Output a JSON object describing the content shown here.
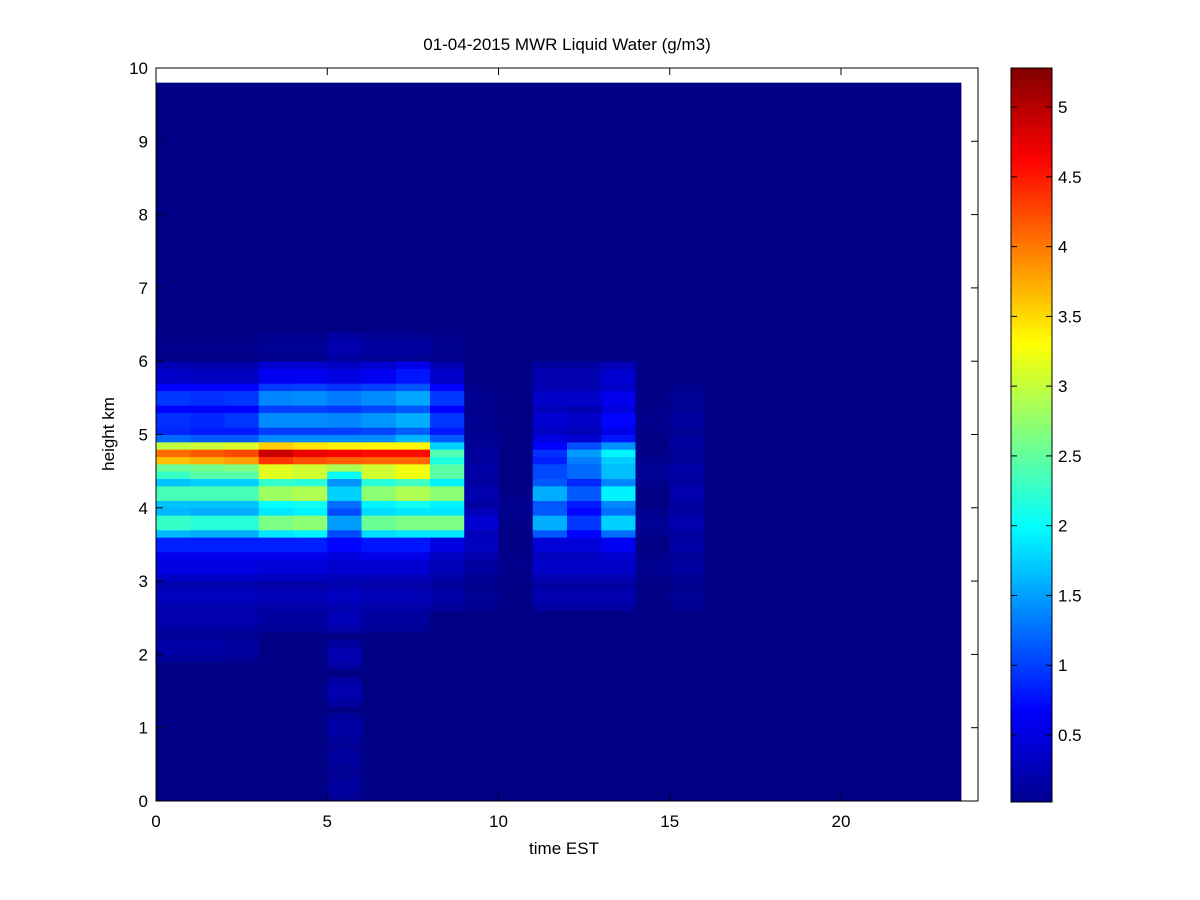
{
  "chart_data": {
    "type": "heatmap",
    "title": "01-04-2015 MWR Liquid Water (g/m3)",
    "xlabel": "time EST",
    "ylabel": "height km",
    "xlim": [
      0,
      24
    ],
    "ylim": [
      0,
      10
    ],
    "x_ticks": [
      0,
      5,
      10,
      15,
      20
    ],
    "y_ticks": [
      0,
      1,
      2,
      3,
      4,
      5,
      6,
      7,
      8,
      9,
      10
    ],
    "x_tick_labels": [
      "0",
      "5",
      "10",
      "15",
      "20"
    ],
    "y_tick_labels": [
      "0",
      "1",
      "2",
      "3",
      "4",
      "5",
      "6",
      "7",
      "8",
      "9",
      "10"
    ],
    "colorbar": {
      "colormap": "jet",
      "range": [
        0.02,
        5.28
      ],
      "ticks": [
        0.5,
        1,
        1.5,
        2,
        2.5,
        3,
        3.5,
        4,
        4.5,
        5
      ],
      "tick_labels": [
        "0.5",
        "1",
        "1.5",
        "2",
        "2.5",
        "3",
        "3.5",
        "4",
        "4.5",
        "5"
      ]
    },
    "time_bin_width": 1,
    "height_top": 9.75,
    "background_value": 0.05,
    "columns": [
      {
        "time": 0.5,
        "profile": [
          [
            2.1,
            0.25
          ],
          [
            2.5,
            0.3
          ],
          [
            2.8,
            0.4
          ],
          [
            3.2,
            0.6
          ],
          [
            3.5,
            0.95
          ],
          [
            3.8,
            2.6
          ],
          [
            4.2,
            2.7
          ],
          [
            4.5,
            2.6
          ],
          [
            4.72,
            4.4
          ],
          [
            4.9,
            1.4
          ],
          [
            5.2,
            1.05
          ],
          [
            5.5,
            1.1
          ],
          [
            5.8,
            0.45
          ],
          [
            6.2,
            0.1
          ]
        ]
      },
      {
        "time": 1.5,
        "profile": [
          [
            2.1,
            0.25
          ],
          [
            2.5,
            0.3
          ],
          [
            2.8,
            0.4
          ],
          [
            3.2,
            0.6
          ],
          [
            3.5,
            0.95
          ],
          [
            3.8,
            2.5
          ],
          [
            4.2,
            2.7
          ],
          [
            4.5,
            2.8
          ],
          [
            4.72,
            4.5
          ],
          [
            4.9,
            1.3
          ],
          [
            5.2,
            1.0
          ],
          [
            5.5,
            1.05
          ],
          [
            5.8,
            0.4
          ],
          [
            6.2,
            0.1
          ]
        ]
      },
      {
        "time": 2.5,
        "profile": [
          [
            2.1,
            0.2
          ],
          [
            2.5,
            0.3
          ],
          [
            2.8,
            0.4
          ],
          [
            3.2,
            0.6
          ],
          [
            3.5,
            0.95
          ],
          [
            3.8,
            2.5
          ],
          [
            4.2,
            2.7
          ],
          [
            4.5,
            2.8
          ],
          [
            4.72,
            4.6
          ],
          [
            4.9,
            1.3
          ],
          [
            5.2,
            1.1
          ],
          [
            5.5,
            1.1
          ],
          [
            5.8,
            0.4
          ],
          [
            6.2,
            0.1
          ]
        ]
      },
      {
        "time": 3.0,
        "profile": [
          [
            2.5,
            0.2
          ],
          [
            2.8,
            0.35
          ],
          [
            3.2,
            0.55
          ],
          [
            3.5,
            0.95
          ],
          [
            3.8,
            3.0
          ],
          [
            4.2,
            3.2
          ],
          [
            4.5,
            3.6
          ],
          [
            4.72,
            5.28
          ],
          [
            4.9,
            1.6
          ],
          [
            5.2,
            1.6
          ],
          [
            5.5,
            1.55
          ],
          [
            5.8,
            0.7
          ],
          [
            6.2,
            0.15
          ]
        ]
      },
      {
        "time": 4.0,
        "profile": [
          [
            2.5,
            0.2
          ],
          [
            2.8,
            0.35
          ],
          [
            3.2,
            0.55
          ],
          [
            3.5,
            0.95
          ],
          [
            3.8,
            3.1
          ],
          [
            4.2,
            3.3
          ],
          [
            4.5,
            3.5
          ],
          [
            4.72,
            5.1
          ],
          [
            4.9,
            1.6
          ],
          [
            5.2,
            1.6
          ],
          [
            5.5,
            1.6
          ],
          [
            5.8,
            0.7
          ],
          [
            6.2,
            0.15
          ]
        ]
      },
      {
        "time": 5.0,
        "profile": [
          [
            0.2,
            0.2
          ],
          [
            0.6,
            0.2
          ],
          [
            1.0,
            0.25
          ],
          [
            1.5,
            0.3
          ],
          [
            2.0,
            0.3
          ],
          [
            2.5,
            0.35
          ],
          [
            2.8,
            0.4
          ],
          [
            3.2,
            0.5
          ],
          [
            3.5,
            0.8
          ],
          [
            3.8,
            1.7
          ],
          [
            4.2,
            2.0
          ],
          [
            4.5,
            2.3
          ],
          [
            4.72,
            5.0
          ],
          [
            4.9,
            1.6
          ],
          [
            5.2,
            1.55
          ],
          [
            5.5,
            1.5
          ],
          [
            5.8,
            0.6
          ],
          [
            6.2,
            0.3
          ]
        ]
      },
      {
        "time": 6.0,
        "profile": [
          [
            2.5,
            0.2
          ],
          [
            2.8,
            0.35
          ],
          [
            3.2,
            0.5
          ],
          [
            3.5,
            0.9
          ],
          [
            3.8,
            2.9
          ],
          [
            4.2,
            3.1
          ],
          [
            4.5,
            3.5
          ],
          [
            4.72,
            4.95
          ],
          [
            4.9,
            1.6
          ],
          [
            5.2,
            1.65
          ],
          [
            5.5,
            1.6
          ],
          [
            5.8,
            0.7
          ],
          [
            6.2,
            0.2
          ]
        ]
      },
      {
        "time": 7.0,
        "profile": [
          [
            2.5,
            0.2
          ],
          [
            2.8,
            0.35
          ],
          [
            3.2,
            0.5
          ],
          [
            3.5,
            0.9
          ],
          [
            3.8,
            3.0
          ],
          [
            4.2,
            3.3
          ],
          [
            4.5,
            3.7
          ],
          [
            4.72,
            4.95
          ],
          [
            4.9,
            1.85
          ],
          [
            5.2,
            1.8
          ],
          [
            5.5,
            1.75
          ],
          [
            5.8,
            0.9
          ],
          [
            6.2,
            0.2
          ]
        ]
      },
      {
        "time": 8.0,
        "profile": [
          [
            2.8,
            0.25
          ],
          [
            3.2,
            0.35
          ],
          [
            3.5,
            0.6
          ],
          [
            3.8,
            3.0
          ],
          [
            4.2,
            3.1
          ],
          [
            4.5,
            2.8
          ],
          [
            4.72,
            2.6
          ],
          [
            4.9,
            1.3
          ],
          [
            5.2,
            1.1
          ],
          [
            5.5,
            1.1
          ],
          [
            5.8,
            0.45
          ],
          [
            6.2,
            0.12
          ]
        ]
      },
      {
        "time": 9.0,
        "profile": [
          [
            2.8,
            0.15
          ],
          [
            3.2,
            0.2
          ],
          [
            3.5,
            0.4
          ],
          [
            3.8,
            0.5
          ],
          [
            4.2,
            0.3
          ],
          [
            4.5,
            0.25
          ],
          [
            4.72,
            0.2
          ],
          [
            4.9,
            0.15
          ],
          [
            5.2,
            0.12
          ],
          [
            5.5,
            0.12
          ]
        ]
      },
      {
        "time": 10.0,
        "profile": [
          [
            3.2,
            0.1
          ],
          [
            4.0,
            0.12
          ]
        ]
      },
      {
        "time": 11.0,
        "profile": [
          [
            2.8,
            0.3
          ],
          [
            3.2,
            0.45
          ],
          [
            3.5,
            0.55
          ],
          [
            3.8,
            1.8
          ],
          [
            4.2,
            1.8
          ],
          [
            4.5,
            1.2
          ],
          [
            4.72,
            1.0
          ],
          [
            4.9,
            0.6
          ],
          [
            5.2,
            0.5
          ],
          [
            5.5,
            0.45
          ],
          [
            5.8,
            0.3
          ]
        ]
      },
      {
        "time": 12.0,
        "profile": [
          [
            2.8,
            0.3
          ],
          [
            3.2,
            0.45
          ],
          [
            3.5,
            0.55
          ],
          [
            3.8,
            1.1
          ],
          [
            4.2,
            1.3
          ],
          [
            4.5,
            1.4
          ],
          [
            4.72,
            1.6
          ],
          [
            4.9,
            0.5
          ],
          [
            5.2,
            0.45
          ],
          [
            5.5,
            0.45
          ],
          [
            5.8,
            0.3
          ]
        ]
      },
      {
        "time": 13.0,
        "profile": [
          [
            2.8,
            0.3
          ],
          [
            3.2,
            0.45
          ],
          [
            3.5,
            0.7
          ],
          [
            3.8,
            2.0
          ],
          [
            4.2,
            2.2
          ],
          [
            4.5,
            1.9
          ],
          [
            4.72,
            2.1
          ],
          [
            4.9,
            0.9
          ],
          [
            5.2,
            0.8
          ],
          [
            5.5,
            0.65
          ],
          [
            5.8,
            0.5
          ]
        ]
      },
      {
        "time": 14.0,
        "profile": [
          [
            3.2,
            0.12
          ],
          [
            3.8,
            0.15
          ],
          [
            4.5,
            0.15
          ],
          [
            5.2,
            0.1
          ]
        ]
      },
      {
        "time": 15.0,
        "profile": [
          [
            2.8,
            0.15
          ],
          [
            3.2,
            0.2
          ],
          [
            3.5,
            0.25
          ],
          [
            3.8,
            0.3
          ],
          [
            4.2,
            0.3
          ],
          [
            4.5,
            0.25
          ],
          [
            4.9,
            0.2
          ],
          [
            5.2,
            0.2
          ],
          [
            5.5,
            0.15
          ]
        ]
      }
    ]
  }
}
